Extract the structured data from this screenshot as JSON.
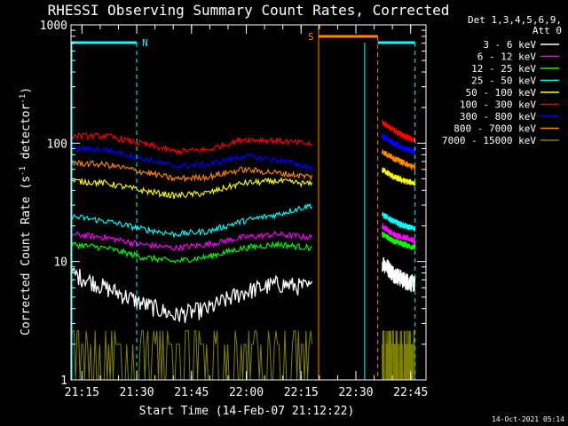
{
  "chart_data": {
    "type": "line",
    "title": "RHESSI Observing Summary Count Rates, Corrected",
    "xlabel": "Start Time (14-Feb-07 21:12:22)",
    "ylabel_main": "Corrected Count Rate (s",
    "ylabel_sup1": "-1",
    "ylabel_mid": " detector",
    "ylabel_sup2": "-1",
    "ylabel_end": ")",
    "yscale": "log",
    "ylim": [
      1,
      1000
    ],
    "xlim_minutes": [
      21.2,
      22.82
    ],
    "x_ticks": [
      {
        "label": "21:15",
        "value": 21.25
      },
      {
        "label": "21:30",
        "value": 21.5
      },
      {
        "label": "21:45",
        "value": 21.75
      },
      {
        "label": "22:00",
        "value": 22.0
      },
      {
        "label": "22:15",
        "value": 22.25
      },
      {
        "label": "22:30",
        "value": 22.5
      },
      {
        "label": "22:45",
        "value": 22.75
      }
    ],
    "y_ticks": [
      {
        "label": "1",
        "value": 1
      },
      {
        "label": "10",
        "value": 10
      },
      {
        "label": "100",
        "value": 100
      },
      {
        "label": "1000",
        "value": 1000
      }
    ],
    "legend_header": [
      "Det 1,3,4,5,6,9,",
      "Att 0"
    ],
    "series": [
      {
        "name": "3 - 6 keV",
        "color": "#ffffff",
        "a": [
          8,
          6,
          4.5,
          3.5,
          4,
          5.5,
          6.5,
          6
        ],
        "b": [
          10,
          8,
          7,
          6.5
        ]
      },
      {
        "name": "6 - 12 keV",
        "color": "#ff00ff",
        "a": [
          17,
          16,
          14,
          13,
          14,
          16,
          17,
          16
        ],
        "b": [
          20,
          17,
          16,
          15
        ]
      },
      {
        "name": "12 - 25 keV",
        "color": "#00ff00",
        "a": [
          14,
          13,
          11,
          10,
          11,
          13,
          14,
          13
        ],
        "b": [
          17,
          15,
          14,
          13
        ]
      },
      {
        "name": "25 - 50 keV",
        "color": "#00ffff",
        "a": [
          24,
          22,
          19,
          17,
          18,
          22,
          25,
          30
        ],
        "b": [
          25,
          22,
          20,
          19
        ]
      },
      {
        "name": "50 - 100 keV",
        "color": "#ffff00",
        "a": [
          48,
          46,
          40,
          36,
          38,
          46,
          48,
          45
        ],
        "b": [
          60,
          52,
          48,
          46
        ]
      },
      {
        "name": "100 - 300 keV",
        "color": "#ff0000",
        "a": [
          115,
          115,
          100,
          85,
          88,
          108,
          105,
          98
        ],
        "b": [
          150,
          130,
          115,
          105
        ]
      },
      {
        "name": "300 - 800 keV",
        "color": "#0000ff",
        "a": [
          90,
          88,
          75,
          64,
          66,
          78,
          72,
          62
        ],
        "b": [
          115,
          100,
          90,
          85
        ]
      },
      {
        "name": "800 - 7000 keV",
        "color": "#ff8800",
        "a": [
          68,
          66,
          58,
          50,
          52,
          60,
          56,
          52
        ],
        "b": [
          85,
          75,
          68,
          62
        ]
      },
      {
        "name": "7000 - 15000 keV",
        "color": "#808000",
        "a": [],
        "b": []
      }
    ],
    "segment_a_minutes": [
      21.2,
      22.3
    ],
    "segment_b_minutes": [
      22.62,
      22.77
    ],
    "annotations": [
      {
        "label": "N",
        "color": "#00ffff"
      },
      {
        "label": "S",
        "color": "#ff8800"
      }
    ],
    "timestamp": "14-Oct-2021 05:14"
  }
}
